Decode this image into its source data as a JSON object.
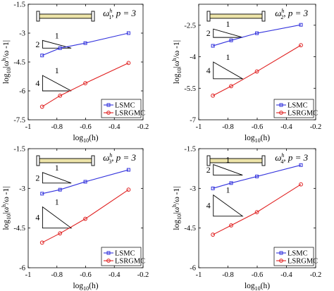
{
  "chart_data": [
    {
      "type": "line",
      "title_symbol": "ω",
      "title_sup": "h",
      "title_sub": "1",
      "title_tail": ", p = 3",
      "xlabel_main": "log",
      "xlabel_sub": "10",
      "xlabel_tail": "(h)",
      "ylabel_main": "log",
      "ylabel_sub": "10",
      "ylabel_mid": "|ω",
      "ylabel_sup": "h",
      "ylabel_tail": "/ω -1|",
      "xlim": [
        -1,
        -0.2
      ],
      "ylim": [
        -7.5,
        -1.5
      ],
      "xticks": [
        -1,
        -0.8,
        -0.6,
        -0.4,
        -0.2
      ],
      "xtick_labels": [
        "-1",
        "-0.8",
        "-0.6",
        "-0.4",
        "-0.2"
      ],
      "yticks": [
        -7.5,
        -6,
        -4.5,
        -3,
        -1.5
      ],
      "ytick_labels": [
        "-7.5",
        "-6",
        "-4.5",
        "-3",
        "-1.5"
      ],
      "grid": false,
      "legend_position": "bottom-right",
      "series": [
        {
          "name": "LSMC",
          "color": "#3333dd",
          "marker": "square",
          "x": [
            -0.9031,
            -0.7782,
            -0.6021,
            -0.301
          ],
          "y": [
            -4.16,
            -3.78,
            -3.52,
            -3.0
          ]
        },
        {
          "name": "LSRGMC",
          "color": "#e02020",
          "marker": "circle",
          "x": [
            -0.9031,
            -0.7782,
            -0.6021,
            -0.301
          ],
          "y": [
            -6.82,
            -6.25,
            -5.6,
            -4.55
          ]
        }
      ],
      "triangles": [
        {
          "slope_label": "2",
          "run_label": "1",
          "x0": -0.9,
          "y0": -3.78,
          "run": 0.2,
          "rise": 0.4
        },
        {
          "slope_label": "4",
          "run_label": "1",
          "x0": -0.9,
          "y0": -6.0,
          "run": 0.2,
          "rise": 0.8
        }
      ]
    },
    {
      "type": "line",
      "title_symbol": "ω",
      "title_sup": "h",
      "title_sub": "2",
      "title_tail": ", p = 3",
      "xlabel_main": "log",
      "xlabel_sub": "10",
      "xlabel_tail": "(h)",
      "ylabel_main": "log",
      "ylabel_sub": "10",
      "ylabel_mid": "|ω",
      "ylabel_sup": "h",
      "ylabel_tail": "/ω -1|",
      "xlim": [
        -1,
        -0.2
      ],
      "ylim": [
        -7,
        -1.5
      ],
      "xticks": [
        -1,
        -0.8,
        -0.6,
        -0.4,
        -0.2
      ],
      "xtick_labels": [
        "-1",
        "-0.8",
        "-0.6",
        "-0.4",
        "-0.2"
      ],
      "yticks": [
        -7,
        -5.5,
        -4,
        -2.5
      ],
      "ytick_labels": [
        "-7",
        "-5.5",
        "-4",
        "-2.5"
      ],
      "grid": false,
      "legend_position": "bottom-right",
      "series": [
        {
          "name": "LSMC",
          "color": "#3333dd",
          "marker": "square",
          "x": [
            -0.9031,
            -0.7782,
            -0.6021,
            -0.301
          ],
          "y": [
            -3.48,
            -3.22,
            -2.88,
            -2.48
          ]
        },
        {
          "name": "LSRGMC",
          "color": "#e02020",
          "marker": "circle",
          "x": [
            -0.9031,
            -0.7782,
            -0.6021,
            -0.301
          ],
          "y": [
            -5.85,
            -5.4,
            -4.7,
            -3.45
          ]
        }
      ],
      "triangles": [
        {
          "slope_label": "2",
          "run_label": "1",
          "x0": -0.9,
          "y0": -3.08,
          "run": 0.2,
          "rise": 0.4
        },
        {
          "slope_label": "4",
          "run_label": "1",
          "x0": -0.9,
          "y0": -5.05,
          "run": 0.2,
          "rise": 0.8
        }
      ]
    },
    {
      "type": "line",
      "title_symbol": "ω",
      "title_sup": "h",
      "title_sub": "3",
      "title_tail": ", p = 3",
      "xlabel_main": "log",
      "xlabel_sub": "10",
      "xlabel_tail": "(h)",
      "ylabel_main": "log",
      "ylabel_sub": "10",
      "ylabel_mid": "|ω",
      "ylabel_sup": "h",
      "ylabel_tail": "/ω -1|",
      "xlim": [
        -1,
        -0.2
      ],
      "ylim": [
        -6,
        -1.5
      ],
      "xticks": [
        -1,
        -0.8,
        -0.6,
        -0.4,
        -0.2
      ],
      "xtick_labels": [
        "-1",
        "-0.8",
        "-0.6",
        "-0.4",
        "-0.2"
      ],
      "yticks": [
        -6,
        -4.5,
        -3,
        -1.5
      ],
      "ytick_labels": [
        "-6",
        "-4.5",
        "-3",
        "-1.5"
      ],
      "grid": false,
      "legend_position": "bottom-right",
      "series": [
        {
          "name": "LSMC",
          "color": "#3333dd",
          "marker": "square",
          "x": [
            -0.9031,
            -0.7782,
            -0.6021,
            -0.301
          ],
          "y": [
            -3.2,
            -3.05,
            -2.75,
            -2.3
          ]
        },
        {
          "name": "LSRGMC",
          "color": "#e02020",
          "marker": "circle",
          "x": [
            -0.9031,
            -0.7782,
            -0.6021,
            -0.301
          ],
          "y": [
            -5.05,
            -4.7,
            -4.15,
            -3.05
          ]
        }
      ],
      "triangles": [
        {
          "slope_label": "2",
          "run_label": "1",
          "x0": -0.9,
          "y0": -2.8,
          "run": 0.2,
          "rise": 0.4
        },
        {
          "slope_label": "4",
          "run_label": "1",
          "x0": -0.9,
          "y0": -4.5,
          "run": 0.2,
          "rise": 0.8
        }
      ]
    },
    {
      "type": "line",
      "title_symbol": "ω",
      "title_sup": "h",
      "title_sub": "4",
      "title_tail": ", p = 3",
      "xlabel_main": "log",
      "xlabel_sub": "10",
      "xlabel_tail": "(h)",
      "ylabel_main": "log",
      "ylabel_sub": "10",
      "ylabel_mid": "|ω",
      "ylabel_sup": "h",
      "ylabel_tail": "/ω -1|",
      "xlim": [
        -1,
        -0.2
      ],
      "ylim": [
        -6,
        -1.5
      ],
      "xticks": [
        -1,
        -0.8,
        -0.6,
        -0.4,
        -0.2
      ],
      "xtick_labels": [
        "-1",
        "-0.8",
        "-0.6",
        "-0.4",
        "-0.2"
      ],
      "yticks": [
        -6,
        -4.5,
        -3,
        -1.5
      ],
      "ytick_labels": [
        "-6",
        "-4.5",
        "-3",
        "-1.5"
      ],
      "grid": false,
      "legend_position": "bottom-right",
      "series": [
        {
          "name": "LSMC",
          "color": "#3333dd",
          "marker": "square",
          "x": [
            -0.9031,
            -0.7782,
            -0.6021,
            -0.301
          ],
          "y": [
            -3.0,
            -2.8,
            -2.55,
            -2.12
          ]
        },
        {
          "name": "LSRGMC",
          "color": "#e02020",
          "marker": "circle",
          "x": [
            -0.9031,
            -0.7782,
            -0.6021,
            -0.301
          ],
          "y": [
            -4.75,
            -4.4,
            -3.9,
            -2.85
          ]
        }
      ],
      "triangles": [
        {
          "slope_label": "2",
          "run_label": "1",
          "x0": -0.9,
          "y0": -2.5,
          "run": 0.2,
          "rise": 0.4
        },
        {
          "slope_label": "4",
          "run_label": "1",
          "x0": -0.9,
          "y0": -4.05,
          "run": 0.2,
          "rise": 0.8
        }
      ]
    }
  ]
}
